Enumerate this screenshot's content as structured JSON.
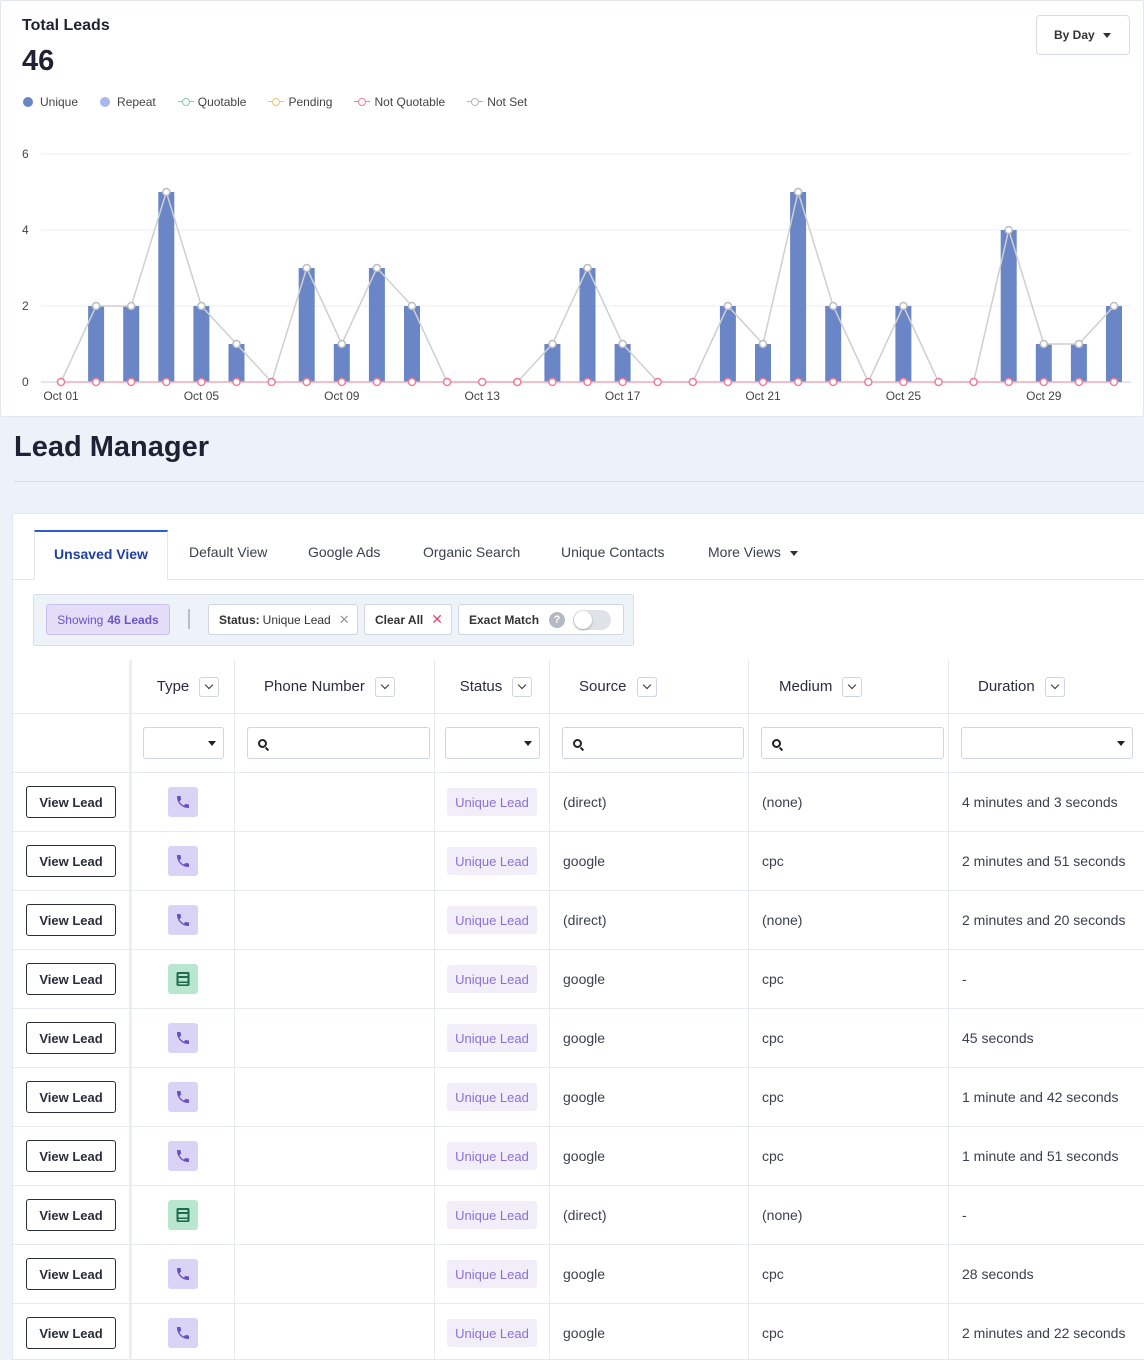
{
  "chart": {
    "title": "Total Leads",
    "total": "46",
    "range_button": "By Day",
    "legend": [
      {
        "label": "Unique",
        "color": "#6a86c7",
        "kind": "dot"
      },
      {
        "label": "Repeat",
        "color": "#a9b8ec",
        "kind": "dot"
      },
      {
        "label": "Quotable",
        "color": "#7fcfa5",
        "kind": "ring"
      },
      {
        "label": "Pending",
        "color": "#f2c46d",
        "kind": "ring"
      },
      {
        "label": "Not Quotable",
        "color": "#ef7f95",
        "kind": "ring"
      },
      {
        "label": "Not Set",
        "color": "#b5b5b5",
        "kind": "ring"
      }
    ]
  },
  "chart_data": {
    "type": "bar",
    "categories": [
      "Oct 01",
      "Oct 02",
      "Oct 03",
      "Oct 04",
      "Oct 05",
      "Oct 06",
      "Oct 07",
      "Oct 08",
      "Oct 09",
      "Oct 10",
      "Oct 11",
      "Oct 12",
      "Oct 13",
      "Oct 14",
      "Oct 15",
      "Oct 16",
      "Oct 17",
      "Oct 18",
      "Oct 19",
      "Oct 20",
      "Oct 21",
      "Oct 22",
      "Oct 23",
      "Oct 24",
      "Oct 25",
      "Oct 26",
      "Oct 27",
      "Oct 28",
      "Oct 29",
      "Oct 30",
      "Oct 31"
    ],
    "tick_labels": [
      "Oct 01",
      "Oct 05",
      "Oct 09",
      "Oct 13",
      "Oct 17",
      "Oct 21",
      "Oct 25",
      "Oct 29"
    ],
    "series": [
      {
        "name": "Unique",
        "kind": "bar",
        "values": [
          0,
          2,
          2,
          5,
          2,
          1,
          0,
          3,
          1,
          3,
          2,
          0,
          0,
          0,
          1,
          3,
          1,
          0,
          0,
          2,
          1,
          5,
          2,
          0,
          2,
          0,
          0,
          4,
          1,
          1,
          2
        ]
      },
      {
        "name": "Not Set",
        "kind": "line",
        "values": [
          0,
          2,
          2,
          5,
          2,
          1,
          0,
          3,
          1,
          3,
          2,
          0,
          0,
          0,
          1,
          3,
          1,
          0,
          0,
          2,
          1,
          5,
          2,
          0,
          2,
          0,
          0,
          4,
          1,
          1,
          2
        ]
      },
      {
        "name": "Not Quotable",
        "kind": "line",
        "values": [
          0,
          0,
          0,
          0,
          0,
          0,
          0,
          0,
          0,
          0,
          0,
          0,
          0,
          0,
          0,
          0,
          0,
          0,
          0,
          0,
          0,
          0,
          0,
          0,
          0,
          0,
          0,
          0,
          0,
          0,
          0
        ]
      }
    ],
    "yticks": [
      0,
      2,
      4,
      6
    ],
    "ylim": [
      0,
      6
    ],
    "grid": true,
    "legend_position": "top-left"
  },
  "lead_manager": {
    "title": "Lead Manager",
    "tabs": [
      {
        "label": "Unsaved View",
        "active": true
      },
      {
        "label": "Default View"
      },
      {
        "label": "Google Ads"
      },
      {
        "label": "Organic Search"
      },
      {
        "label": "Unique Contacts"
      },
      {
        "label": "More Views"
      }
    ],
    "filters": {
      "showing_prefix": "Showing",
      "showing_count": "46 Leads",
      "status_key": "Status:",
      "status_value": "Unique Lead",
      "clear_all": "Clear All",
      "exact_match": "Exact Match",
      "help": "?"
    },
    "columns": [
      "Type",
      "Phone Number",
      "Status",
      "Source",
      "Medium",
      "Duration"
    ],
    "view_label": "View Lead",
    "rows": [
      {
        "type": "call",
        "phone": "",
        "status": "Unique Lead",
        "source": "(direct)",
        "medium": "(none)",
        "duration": "4 minutes and 3 seconds"
      },
      {
        "type": "call",
        "phone": "",
        "status": "Unique Lead",
        "source": "google",
        "medium": "cpc",
        "duration": "2 minutes and 51 seconds"
      },
      {
        "type": "call",
        "phone": "",
        "status": "Unique Lead",
        "source": "(direct)",
        "medium": "(none)",
        "duration": "2 minutes and 20 seconds"
      },
      {
        "type": "form",
        "phone": "",
        "status": "Unique Lead",
        "source": "google",
        "medium": "cpc",
        "duration": "-"
      },
      {
        "type": "call",
        "phone": "",
        "status": "Unique Lead",
        "source": "google",
        "medium": "cpc",
        "duration": "45 seconds"
      },
      {
        "type": "call",
        "phone": "",
        "status": "Unique Lead",
        "source": "google",
        "medium": "cpc",
        "duration": "1 minute and 42 seconds"
      },
      {
        "type": "call",
        "phone": "",
        "status": "Unique Lead",
        "source": "google",
        "medium": "cpc",
        "duration": "1 minute and 51 seconds"
      },
      {
        "type": "form",
        "phone": "",
        "status": "Unique Lead",
        "source": "(direct)",
        "medium": "(none)",
        "duration": "-"
      },
      {
        "type": "call",
        "phone": "",
        "status": "Unique Lead",
        "source": "google",
        "medium": "cpc",
        "duration": "28 seconds"
      },
      {
        "type": "call",
        "phone": "",
        "status": "Unique Lead",
        "source": "google",
        "medium": "cpc",
        "duration": "2 minutes and 22 seconds"
      }
    ]
  }
}
